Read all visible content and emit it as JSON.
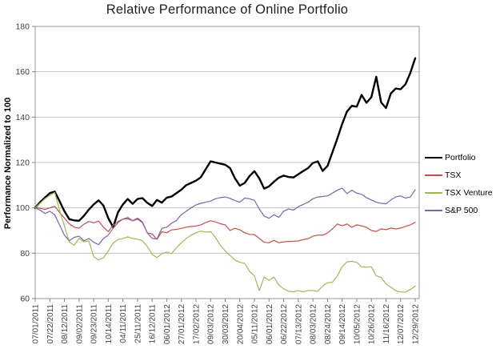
{
  "window": {
    "title": "Relative Performance of Online Portfolio"
  },
  "chart_data": {
    "type": "line",
    "title": "Relative Performance of Online Portfolio",
    "xlabel": "",
    "ylabel": "Performance Normalized to 100",
    "ylim": [
      60,
      180
    ],
    "y_ticks": [
      60,
      80,
      100,
      120,
      140,
      160,
      180
    ],
    "grid": "horizontal-light-gray",
    "legend_position": "right",
    "x_unit": "weekly values from 07/01/2011 to 12/29/2012; axis labels every 3 weeks",
    "x_labels": [
      "07/01/2011",
      "07/22/2011",
      "08/12/2011",
      "09/02/2011",
      "09/23/2011",
      "10/14/2011",
      "04/11/2011",
      "25/11/2011",
      "16/12/2011",
      "06/01/2012",
      "27/01/2012",
      "17/02/2012",
      "09/03/2012",
      "30/03/2012",
      "20/04/2012",
      "05/11/2012",
      "06/01/2012",
      "06/22/2012",
      "07/13/2012",
      "08/03/2012",
      "08/24/2012",
      "09/14/2012",
      "10/05/2012",
      "10/26/2012",
      "11/16/2012",
      "12/07/2012",
      "12/29/2012"
    ],
    "label_every_n_points": 3,
    "series": [
      {
        "name": "Portfolio",
        "color": "#000000",
        "line_width": 2.4,
        "values": [
          100,
          102.5,
          104.5,
          106.5,
          107.2,
          103,
          98.5,
          95,
          94.5,
          94.3,
          96.5,
          99.2,
          101.5,
          103.3,
          101,
          95.5,
          91.5,
          98,
          101.5,
          103.9,
          101.8,
          103.9,
          104.3,
          102.2,
          100.8,
          103.5,
          102.3,
          104.5,
          105,
          106.5,
          108,
          110,
          111,
          112,
          113.5,
          117,
          120.5,
          120,
          119.5,
          119,
          117.5,
          113,
          109.8,
          111,
          114,
          116.2,
          113,
          108.5,
          109.5,
          111.5,
          113.3,
          114.2,
          113.6,
          113.4,
          114.8,
          116.2,
          117.5,
          119.8,
          120.5,
          116.3,
          118.5,
          124.5,
          130.5,
          137,
          142.5,
          145,
          144.6,
          149.8,
          146.3,
          148.8,
          157.8,
          146.5,
          144,
          150.5,
          152.6,
          152.3,
          154.5,
          159.5,
          166
        ]
      },
      {
        "name": "TSX",
        "color": "#C0504D",
        "line_width": 1.2,
        "values": [
          100,
          99.8,
          99.3,
          100,
          100.7,
          98,
          95.5,
          93,
          91.5,
          91,
          92.8,
          94,
          93.4,
          94.2,
          91.5,
          89.5,
          92.3,
          94,
          95,
          95.2,
          94.3,
          95,
          93.5,
          89,
          88.5,
          86.1,
          89.5,
          89,
          90.3,
          90.5,
          91,
          91.5,
          91.8,
          92,
          92.5,
          93.5,
          94.3,
          93.8,
          93,
          92.5,
          90,
          91,
          90.3,
          89,
          88.3,
          88.2,
          86.5,
          84.8,
          84.6,
          85.7,
          84.6,
          85,
          85.2,
          85.3,
          85.4,
          86,
          86.4,
          87.5,
          88,
          87.9,
          88.9,
          90.7,
          92.9,
          92.1,
          92.9,
          91.4,
          92.5,
          92.1,
          91.4,
          90,
          89.6,
          90.7,
          90.4,
          91.1,
          90.7,
          91.1,
          91.8,
          92.5,
          93.6
        ]
      },
      {
        "name": "TSX Venture",
        "color": "#9BBB59",
        "line_width": 1.2,
        "values": [
          100,
          102,
          104,
          105.5,
          106.8,
          99,
          92,
          85,
          83.5,
          86.5,
          85,
          85.5,
          78.5,
          77,
          78,
          81,
          84.5,
          86,
          86.5,
          87.2,
          86.5,
          86.2,
          85.5,
          83,
          79.5,
          78.1,
          79.8,
          80.5,
          79.8,
          82.5,
          84.5,
          86.5,
          88,
          89,
          89.8,
          89.3,
          89.5,
          87,
          83.5,
          81,
          79,
          77,
          76,
          75.5,
          72,
          70,
          63.5,
          69.5,
          68,
          69.5,
          66,
          64.3,
          63.2,
          63,
          63.5,
          63,
          63.6,
          63.5,
          63.2,
          65.5,
          67,
          67.2,
          70,
          74,
          76.2,
          76.4,
          76,
          74,
          73.8,
          74,
          70,
          69.3,
          66.5,
          65,
          63.5,
          62.9,
          62.9,
          64,
          65.5
        ]
      },
      {
        "name": "S&P 500",
        "color": "#8064A2",
        "line_width": 1.2,
        "values": [
          100,
          99,
          97.5,
          98.5,
          97,
          92.5,
          88,
          85.5,
          87,
          87.5,
          85.5,
          86.5,
          84.8,
          83.8,
          86.5,
          88,
          91,
          93.5,
          95,
          95.8,
          94.3,
          95.5,
          93.8,
          89,
          86.5,
          86.3,
          91,
          91.5,
          93.2,
          94.5,
          97,
          98.5,
          100,
          101.3,
          102,
          102.5,
          103,
          104,
          104.5,
          104.8,
          104.2,
          103.2,
          102.5,
          104.3,
          104,
          103.3,
          99.5,
          96.4,
          95.4,
          97,
          95.8,
          98.5,
          99.5,
          99,
          100.5,
          101.5,
          102.5,
          104,
          104.8,
          105,
          105.3,
          106.5,
          107.8,
          108.7,
          106.3,
          107.8,
          106.5,
          106,
          104.5,
          103.5,
          102.5,
          102,
          101.8,
          103.5,
          104.8,
          105.3,
          104.3,
          104.8,
          108
        ]
      }
    ],
    "colors": {
      "plot_border": "#959595",
      "gridline": "#c3c3c3",
      "tick": "#808080",
      "axis_text": "#3f3f3f",
      "title_text": "#1f1f1f"
    }
  }
}
